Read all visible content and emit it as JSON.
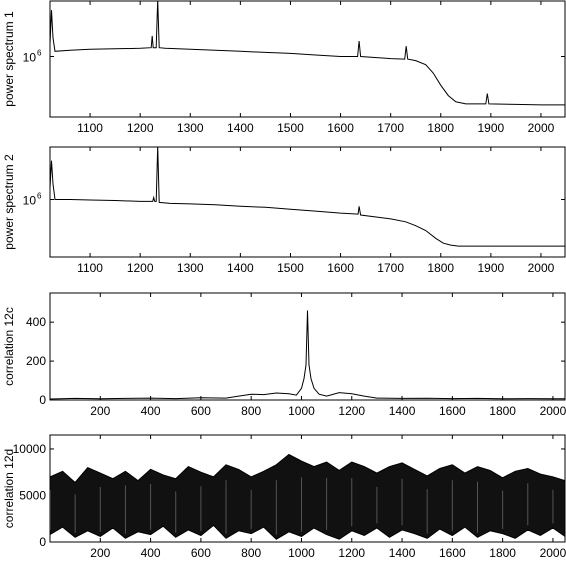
{
  "chart_data": [
    {
      "type": "line",
      "ylabel": "power spectrum 1",
      "ytick_label": "10",
      "ytick_exp": "6",
      "xlim": [
        1020,
        2048
      ],
      "x_ticks": [
        1100,
        1200,
        1300,
        1400,
        1500,
        1600,
        1700,
        1800,
        1900,
        2000
      ],
      "x_tick_labels": [
        "1100",
        "1200",
        "1300",
        "1400",
        "1500",
        "1600",
        "1700",
        "1800",
        "1900",
        "2000"
      ],
      "grid": false,
      "series": [
        {
          "x": [
            1020,
            1023,
            1026,
            1030,
            1060,
            1100,
            1150,
            1200,
            1222,
            1224,
            1226,
            1232,
            1235,
            1238,
            1250,
            1300,
            1350,
            1400,
            1450,
            1500,
            1550,
            1600,
            1634,
            1637,
            1640,
            1700,
            1728,
            1731,
            1734,
            1750,
            1770,
            1785,
            1800,
            1815,
            1830,
            1850,
            1890,
            1893,
            1896,
            1950,
            2000,
            2048
          ],
          "y": [
            0.62,
            0.95,
            0.68,
            0.55,
            0.56,
            0.57,
            0.575,
            0.58,
            0.585,
            0.7,
            0.585,
            0.585,
            1.05,
            0.585,
            0.58,
            0.57,
            0.56,
            0.55,
            0.54,
            0.53,
            0.515,
            0.5,
            0.5,
            0.65,
            0.5,
            0.48,
            0.475,
            0.6,
            0.475,
            0.46,
            0.42,
            0.34,
            0.22,
            0.12,
            0.06,
            0.04,
            0.04,
            0.14,
            0.04,
            0.035,
            0.03,
            0.03
          ]
        }
      ]
    },
    {
      "type": "line",
      "ylabel": "power spectrum 2",
      "ytick_label": "10",
      "ytick_exp": "6",
      "xlim": [
        1020,
        2048
      ],
      "x_ticks": [
        1100,
        1200,
        1300,
        1400,
        1500,
        1600,
        1700,
        1800,
        1900,
        2000
      ],
      "x_tick_labels": [
        "1100",
        "1200",
        "1300",
        "1400",
        "1500",
        "1600",
        "1700",
        "1800",
        "1900",
        "2000"
      ],
      "grid": false,
      "series": [
        {
          "x": [
            1020,
            1023,
            1026,
            1030,
            1060,
            1100,
            1150,
            1200,
            1225,
            1227,
            1229,
            1232,
            1235,
            1238,
            1260,
            1300,
            1350,
            1400,
            1450,
            1500,
            1550,
            1600,
            1635,
            1637,
            1640,
            1700,
            1730,
            1750,
            1770,
            1790,
            1805,
            1820,
            1835,
            1850,
            1900,
            1950,
            2000,
            2048
          ],
          "y": [
            0.62,
            0.9,
            0.66,
            0.5,
            0.5,
            0.495,
            0.49,
            0.48,
            0.48,
            0.52,
            0.48,
            0.48,
            1.05,
            0.47,
            0.46,
            0.455,
            0.445,
            0.43,
            0.42,
            0.4,
            0.38,
            0.36,
            0.35,
            0.43,
            0.34,
            0.3,
            0.27,
            0.23,
            0.18,
            0.1,
            0.05,
            0.03,
            0.02,
            0.02,
            0.02,
            0.02,
            0.02,
            0.02
          ]
        }
      ]
    },
    {
      "type": "line",
      "ylabel": "correlation 12c",
      "xlim": [
        0,
        2048
      ],
      "ylim": [
        0,
        550
      ],
      "x_ticks": [
        200,
        400,
        600,
        800,
        1000,
        1200,
        1400,
        1600,
        1800,
        2000
      ],
      "x_tick_labels": [
        "200",
        "400",
        "600",
        "800",
        "1000",
        "1200",
        "1400",
        "1600",
        "1800",
        "2000"
      ],
      "y_ticks": [
        0,
        200,
        400
      ],
      "y_tick_labels": [
        "0",
        "200",
        "400"
      ],
      "grid": false,
      "series": [
        {
          "x": [
            0,
            100,
            200,
            300,
            400,
            500,
            600,
            700,
            750,
            800,
            850,
            900,
            950,
            980,
            1000,
            1010,
            1018,
            1024,
            1030,
            1038,
            1050,
            1070,
            1100,
            1150,
            1200,
            1250,
            1300,
            1400,
            1500,
            1600,
            1700,
            1800,
            1900,
            2000,
            2048
          ],
          "y": [
            5,
            8,
            6,
            8,
            10,
            7,
            12,
            10,
            20,
            30,
            28,
            36,
            32,
            25,
            60,
            110,
            180,
            460,
            180,
            110,
            60,
            30,
            20,
            38,
            32,
            20,
            10,
            8,
            9,
            7,
            8,
            6,
            7,
            6,
            6
          ]
        }
      ]
    },
    {
      "type": "area",
      "ylabel": "correlation 12d",
      "xlim": [
        0,
        2048
      ],
      "ylim": [
        0,
        11500
      ],
      "x_ticks": [
        200,
        400,
        600,
        800,
        1000,
        1200,
        1400,
        1600,
        1800,
        2000
      ],
      "x_tick_labels": [
        "200",
        "400",
        "600",
        "800",
        "1000",
        "1200",
        "1400",
        "1600",
        "1800",
        "2000"
      ],
      "y_ticks": [
        0,
        5000,
        10000
      ],
      "y_tick_labels": [
        "0",
        "5000",
        "10000"
      ],
      "grid": false,
      "series": [
        {
          "x": [
            0,
            50,
            100,
            150,
            200,
            250,
            300,
            350,
            400,
            450,
            500,
            550,
            600,
            650,
            700,
            750,
            800,
            850,
            900,
            950,
            1000,
            1050,
            1100,
            1150,
            1200,
            1250,
            1300,
            1350,
            1400,
            1450,
            1500,
            1550,
            1600,
            1650,
            1700,
            1750,
            1800,
            1850,
            1900,
            1950,
            2000,
            2048
          ],
          "upper": [
            7000,
            7600,
            6400,
            8000,
            7400,
            6800,
            7600,
            6600,
            7800,
            7200,
            6800,
            8100,
            7500,
            7000,
            8300,
            7800,
            7000,
            7600,
            8300,
            9400,
            8700,
            8100,
            8600,
            7700,
            8600,
            8100,
            7400,
            8100,
            8500,
            7800,
            7100,
            7900,
            8300,
            7400,
            8100,
            7700,
            6900,
            7600,
            7900,
            7300,
            7000,
            6600
          ],
          "lower": [
            800,
            1600,
            500,
            1200,
            600,
            1500,
            400,
            1100,
            800,
            1700,
            500,
            1300,
            700,
            1800,
            400,
            1200,
            900,
            1600,
            300,
            1100,
            600,
            1500,
            800,
            300,
            1200,
            700,
            1500,
            500,
            1300,
            900,
            400,
            1400,
            700,
            1600,
            500,
            1200,
            900,
            400,
            1300,
            700,
            1500,
            600
          ]
        }
      ]
    }
  ]
}
